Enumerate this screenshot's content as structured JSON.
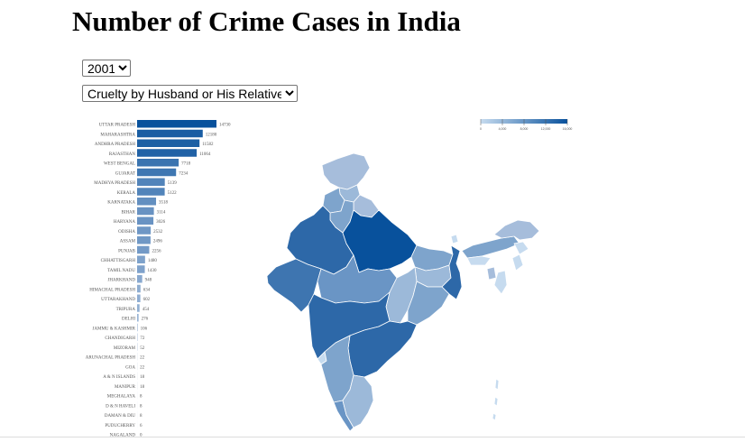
{
  "title": "Number of Crime Cases in India",
  "controls": {
    "year": {
      "selected": "2001"
    },
    "crime": {
      "selected": "Cruelty by Husband or His Relatives"
    }
  },
  "colors": {
    "high": "#08519c",
    "mid": "#3d78b1",
    "low": "#a6bddb",
    "border": "#ffffff"
  },
  "chart_data": [
    {
      "type": "bar",
      "orientation": "horizontal",
      "categories": [
        "UTTAR PRADESH",
        "MAHARASHTRA",
        "ANDHRA PRADESH",
        "RAJASTHAN",
        "WEST BENGAL",
        "GUJARAT",
        "MADHYA PRADESH",
        "KERALA",
        "KARNATAKA",
        "BIHAR",
        "HARYANA",
        "ODISHA",
        "ASSAM",
        "PUNJAB",
        "CHHATTISGARH",
        "TAMIL NADU",
        "JHARKHAND",
        "HIMACHAL PRADESH",
        "UTTARAKHAND",
        "TRIPURA",
        "DELHI",
        "JAMMU & KASHMIR",
        "CHANDIGARH",
        "MIZORAM",
        "ARUNACHAL PRADESH",
        "GOA",
        "A & N ISLANDS",
        "MANIPUR",
        "MEGHALAYA",
        "D & N HAVELI",
        "DAMAN & DIU",
        "PUDUCHERRY",
        "NAGALAND"
      ],
      "values": [
        14730,
        12180,
        11582,
        11064,
        7718,
        7234,
        5139,
        5122,
        3518,
        3114,
        3026,
        2532,
        2496,
        2256,
        1480,
        1430,
        948,
        634,
        602,
        454,
        276,
        106,
        72,
        52,
        22,
        22,
        18,
        18,
        8,
        8,
        8,
        6,
        0
      ],
      "value_labels": [
        "14730",
        "12180",
        "11582",
        "11064",
        "7718",
        "7234",
        "5139",
        "5122",
        "3518",
        "3114",
        "3026",
        "2532",
        "2496",
        "2256",
        "1480",
        "1430",
        "948",
        "634",
        "602",
        "454",
        "276",
        "106",
        "72",
        "52",
        "22",
        "22",
        "18",
        "18",
        "8",
        "8",
        "8",
        "6",
        "0"
      ],
      "xlim": [
        0,
        16000
      ]
    },
    {
      "type": "choropleth",
      "legend": {
        "ticks": [
          "0",
          "4,000",
          "8,000",
          "12,000",
          "16,000"
        ],
        "range": [
          0,
          16000
        ]
      }
    }
  ]
}
